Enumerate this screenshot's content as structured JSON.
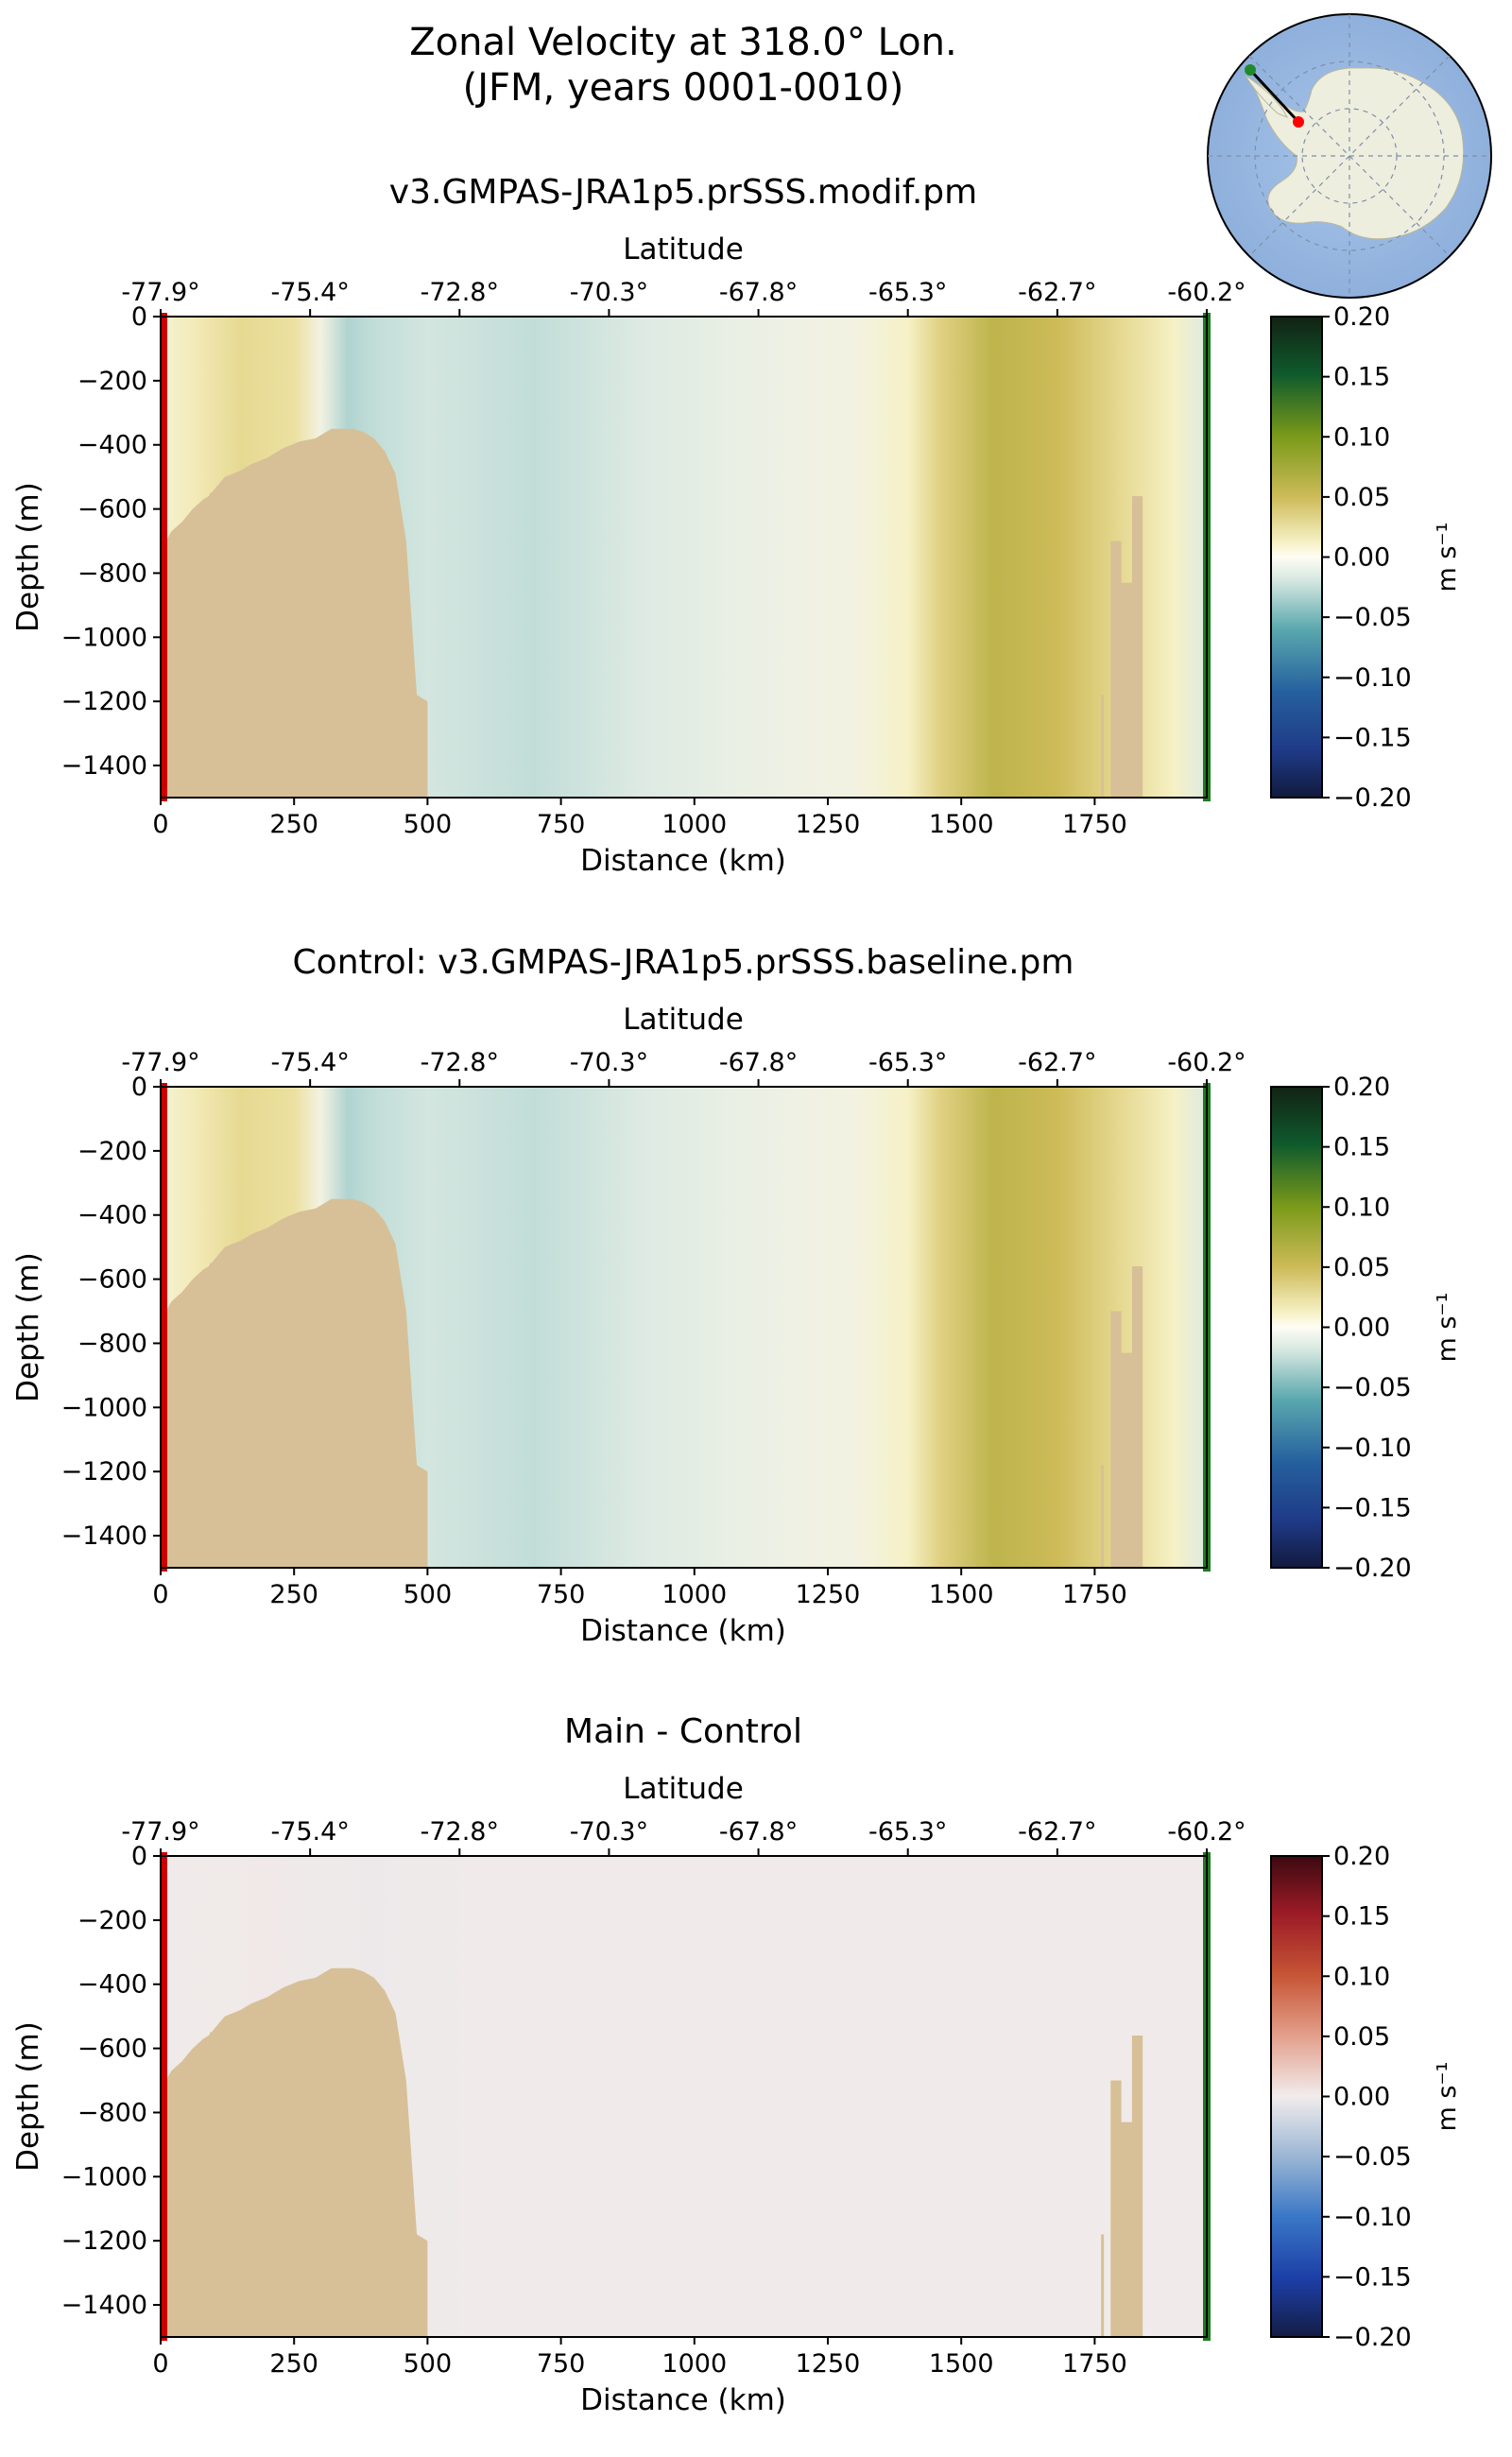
{
  "figure": {
    "title_line1": "Zonal Velocity at 318.0° Lon.",
    "title_line2": "(JFM, years 0001-0010)"
  },
  "inset_map": {
    "description_name": "antarctica-transect-map",
    "colors": {
      "ocean": "#94b5e0",
      "land": "#eeeedf",
      "transect": "#000000",
      "start_marker": "#ff0000",
      "end_marker": "#1f8a2a"
    }
  },
  "chart_data": [
    {
      "type": "heatmap",
      "title": "v3.GMPAS-JRA1p5.prSSS.modif.pm",
      "xlabel": "Distance (km)",
      "ylabel": "Depth (m)",
      "top_xlabel": "Latitude",
      "xlim": [
        0,
        1960
      ],
      "ylim": [
        -1500,
        0
      ],
      "xticks": [
        0,
        250,
        500,
        750,
        1000,
        1250,
        1500,
        1750
      ],
      "yticks": [
        0,
        -200,
        -400,
        -600,
        -800,
        -1000,
        -1200,
        -1400
      ],
      "lat_ticks": [
        "-77.9°",
        "-75.4°",
        "-72.8°",
        "-70.3°",
        "-67.8°",
        "-65.3°",
        "-62.7°",
        "-60.2°"
      ],
      "colorbar": {
        "label": "m s⁻¹",
        "min": -0.2,
        "max": 0.2,
        "ticks": [
          "0.20",
          "0.15",
          "0.10",
          "0.05",
          "0.00",
          "−0.05",
          "−0.10",
          "−0.15",
          "−0.20"
        ],
        "colormap": "speed-diverging"
      },
      "velocity_profile_km": [
        [
          0,
          0.005
        ],
        [
          60,
          0.015
        ],
        [
          150,
          0.03
        ],
        [
          250,
          0.025
        ],
        [
          300,
          0.0
        ],
        [
          350,
          -0.025
        ],
        [
          400,
          -0.02
        ],
        [
          500,
          -0.015
        ],
        [
          700,
          -0.02
        ],
        [
          900,
          -0.01
        ],
        [
          1100,
          -0.003
        ],
        [
          1300,
          0.0
        ],
        [
          1400,
          0.01
        ],
        [
          1460,
          0.035
        ],
        [
          1560,
          0.06
        ],
        [
          1680,
          0.05
        ],
        [
          1800,
          0.03
        ],
        [
          1900,
          0.01
        ],
        [
          1960,
          -0.01
        ]
      ]
    },
    {
      "type": "heatmap",
      "title": "Control: v3.GMPAS-JRA1p5.prSSS.baseline.pm",
      "xlabel": "Distance (km)",
      "ylabel": "Depth (m)",
      "top_xlabel": "Latitude",
      "xlim": [
        0,
        1960
      ],
      "ylim": [
        -1500,
        0
      ],
      "xticks": [
        0,
        250,
        500,
        750,
        1000,
        1250,
        1500,
        1750
      ],
      "yticks": [
        0,
        -200,
        -400,
        -600,
        -800,
        -1000,
        -1200,
        -1400
      ],
      "lat_ticks": [
        "-77.9°",
        "-75.4°",
        "-72.8°",
        "-70.3°",
        "-67.8°",
        "-65.3°",
        "-62.7°",
        "-60.2°"
      ],
      "colorbar": {
        "label": "m s⁻¹",
        "min": -0.2,
        "max": 0.2,
        "ticks": [
          "0.20",
          "0.15",
          "0.10",
          "0.05",
          "0.00",
          "−0.05",
          "−0.10",
          "−0.15",
          "−0.20"
        ],
        "colormap": "speed-diverging"
      },
      "velocity_profile_km": [
        [
          0,
          0.005
        ],
        [
          60,
          0.015
        ],
        [
          150,
          0.03
        ],
        [
          250,
          0.025
        ],
        [
          300,
          0.0
        ],
        [
          350,
          -0.025
        ],
        [
          400,
          -0.02
        ],
        [
          500,
          -0.015
        ],
        [
          700,
          -0.02
        ],
        [
          900,
          -0.01
        ],
        [
          1100,
          -0.003
        ],
        [
          1300,
          0.0
        ],
        [
          1400,
          0.01
        ],
        [
          1460,
          0.035
        ],
        [
          1560,
          0.06
        ],
        [
          1680,
          0.05
        ],
        [
          1800,
          0.03
        ],
        [
          1900,
          0.01
        ],
        [
          1960,
          -0.01
        ]
      ]
    },
    {
      "type": "heatmap",
      "title": "Main - Control",
      "xlabel": "Distance (km)",
      "ylabel": "Depth (m)",
      "top_xlabel": "Latitude",
      "xlim": [
        0,
        1960
      ],
      "ylim": [
        -1500,
        0
      ],
      "xticks": [
        0,
        250,
        500,
        750,
        1000,
        1250,
        1500,
        1750
      ],
      "yticks": [
        0,
        -200,
        -400,
        -600,
        -800,
        -1000,
        -1200,
        -1400
      ],
      "lat_ticks": [
        "-77.9°",
        "-75.4°",
        "-72.8°",
        "-70.3°",
        "-67.8°",
        "-65.3°",
        "-62.7°",
        "-60.2°"
      ],
      "colorbar": {
        "label": "m s⁻¹",
        "min": -0.2,
        "max": 0.2,
        "ticks": [
          "0.20",
          "0.15",
          "0.10",
          "0.05",
          "0.00",
          "−0.05",
          "−0.10",
          "−0.15",
          "−0.20"
        ],
        "colormap": "balance"
      },
      "velocity_profile_km": [
        [
          0,
          0.0
        ],
        [
          200,
          0.002
        ],
        [
          300,
          -0.001
        ],
        [
          400,
          -0.002
        ],
        [
          600,
          0.0
        ],
        [
          1960,
          0.0
        ]
      ]
    }
  ],
  "bathymetry_km_m": [
    [
      0,
      -1500
    ],
    [
      0,
      -760
    ],
    [
      10,
      -700
    ],
    [
      20,
      -670
    ],
    [
      40,
      -640
    ],
    [
      60,
      -600
    ],
    [
      80,
      -570
    ],
    [
      90,
      -560
    ],
    [
      100,
      -540
    ],
    [
      120,
      -500
    ],
    [
      150,
      -480
    ],
    [
      170,
      -460
    ],
    [
      200,
      -440
    ],
    [
      230,
      -410
    ],
    [
      260,
      -390
    ],
    [
      290,
      -380
    ],
    [
      320,
      -350
    ],
    [
      360,
      -350
    ],
    [
      380,
      -360
    ],
    [
      400,
      -380
    ],
    [
      420,
      -420
    ],
    [
      440,
      -490
    ],
    [
      460,
      -700
    ],
    [
      480,
      -1180
    ],
    [
      500,
      -1200
    ],
    [
      500,
      -1500
    ]
  ],
  "bathymetry_ridge_km_m": [
    [
      1780,
      -1500
    ],
    [
      1780,
      -700
    ],
    [
      1800,
      -700
    ],
    [
      1800,
      -830
    ],
    [
      1820,
      -830
    ],
    [
      1820,
      -560
    ],
    [
      1840,
      -560
    ],
    [
      1840,
      -1500
    ]
  ],
  "colors": {
    "land": "#d7c097",
    "start_marker": "#cc0000",
    "end_marker": "#1e7b1e"
  }
}
